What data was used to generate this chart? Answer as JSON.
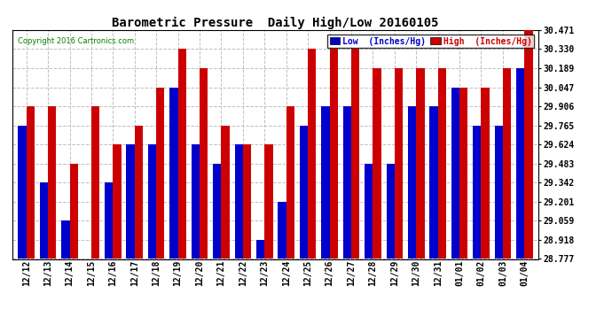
{
  "title": "Barometric Pressure  Daily High/Low 20160105",
  "copyright": "Copyright 2016 Cartronics.com",
  "legend_low": "Low  (Inches/Hg)",
  "legend_high": "High  (Inches/Hg)",
  "low_color": "#0000cc",
  "high_color": "#cc0000",
  "background_color": "#ffffff",
  "grid_color": "#c0c0c0",
  "dates": [
    "12/12",
    "12/13",
    "12/14",
    "12/15",
    "12/16",
    "12/17",
    "12/18",
    "12/19",
    "12/20",
    "12/21",
    "12/22",
    "12/23",
    "12/24",
    "12/25",
    "12/26",
    "12/27",
    "12/28",
    "12/29",
    "12/30",
    "12/31",
    "01/01",
    "01/02",
    "01/03",
    "01/04"
  ],
  "low_values": [
    29.765,
    29.342,
    29.059,
    28.777,
    29.342,
    29.624,
    29.624,
    30.047,
    29.624,
    29.483,
    29.624,
    28.918,
    29.201,
    29.765,
    29.906,
    29.906,
    29.483,
    29.483,
    29.906,
    29.906,
    30.047,
    29.765,
    29.765,
    30.189
  ],
  "high_values": [
    29.906,
    29.906,
    29.483,
    29.906,
    29.624,
    29.765,
    30.047,
    30.33,
    30.189,
    29.765,
    29.624,
    29.624,
    29.906,
    30.33,
    30.33,
    30.33,
    30.189,
    30.189,
    30.189,
    30.189,
    30.047,
    30.047,
    30.189,
    30.471
  ],
  "ylim_min": 28.777,
  "ylim_max": 30.471,
  "yticks": [
    28.777,
    28.918,
    29.059,
    29.201,
    29.342,
    29.483,
    29.624,
    29.765,
    29.906,
    30.047,
    30.189,
    30.33,
    30.471
  ]
}
